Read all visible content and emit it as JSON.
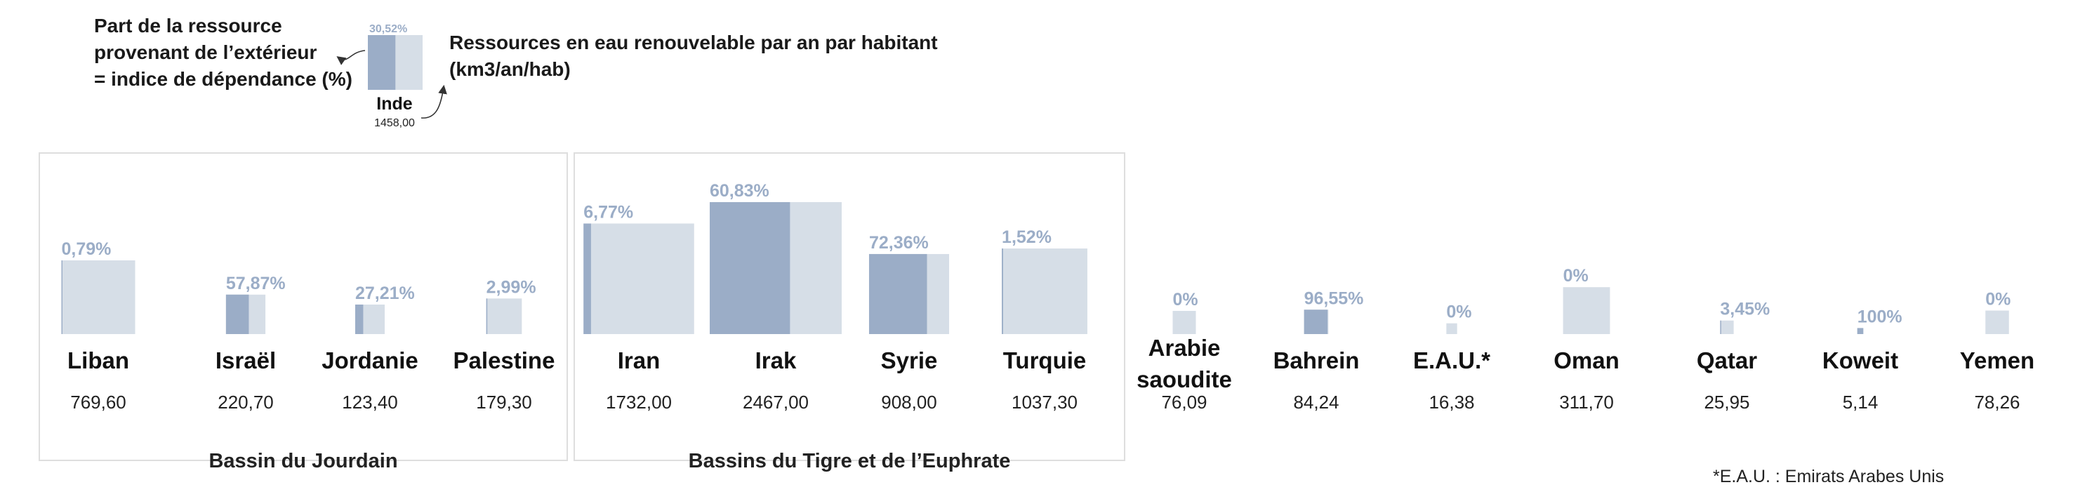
{
  "legend": {
    "left_text": [
      "Part de la ressource",
      "provenant de l’extérieur",
      "= indice de dépendance (%)"
    ],
    "right_text": [
      "Ressources en eau renouvelable par an par habitant",
      "(km3/an/hab)"
    ],
    "example": {
      "country": "Inde",
      "pct_label": "30,52%",
      "pct": 30.52,
      "value_label": "1458,00",
      "value": 1458.0
    }
  },
  "colors": {
    "dependent": "#9badc7",
    "total": "#d6dee7",
    "pct_text": "#9badc7",
    "frame": "#dedede"
  },
  "chart_data": {
    "type": "bar",
    "title": "",
    "groups": [
      {
        "label": "Bassin du Jourdain",
        "countries": [
          {
            "name": "Liban",
            "value": 769.6,
            "value_label": "769,60",
            "pct": 0.79,
            "pct_label": "0,79%"
          },
          {
            "name": "Israël",
            "value": 220.7,
            "value_label": "220,70",
            "pct": 57.87,
            "pct_label": "57,87%"
          },
          {
            "name": "Jordanie",
            "value": 123.4,
            "value_label": "123,40",
            "pct": 27.21,
            "pct_label": "27,21%"
          },
          {
            "name": "Palestine",
            "value": 179.3,
            "value_label": "179,30",
            "pct": 2.99,
            "pct_label": "2,99%"
          }
        ]
      },
      {
        "label": "Bassins du Tigre et de l’Euphrate",
        "countries": [
          {
            "name": "Iran",
            "value": 1732.0,
            "value_label": "1732,00",
            "pct": 6.77,
            "pct_label": "6,77%"
          },
          {
            "name": "Irak",
            "value": 2467.0,
            "value_label": "2467,00",
            "pct": 60.83,
            "pct_label": "60,83%"
          },
          {
            "name": "Syrie",
            "value": 908.0,
            "value_label": "908,00",
            "pct": 72.36,
            "pct_label": "72,36%"
          },
          {
            "name": "Turquie",
            "value": 1037.3,
            "value_label": "1037,30",
            "pct": 1.52,
            "pct_label": "1,52%"
          }
        ]
      },
      {
        "label": "",
        "countries": [
          {
            "name": "Arabie saoudite",
            "value": 76.09,
            "value_label": "76,09",
            "pct": 0,
            "pct_label": "0%"
          },
          {
            "name": "Bahrein",
            "value": 84.24,
            "value_label": "84,24",
            "pct": 96.55,
            "pct_label": "96,55%"
          },
          {
            "name": "E.A.U.*",
            "value": 16.38,
            "value_label": "16,38",
            "pct": 0,
            "pct_label": "0%"
          },
          {
            "name": "Oman",
            "value": 311.7,
            "value_label": "311,70",
            "pct": 0,
            "pct_label": "0%"
          },
          {
            "name": "Qatar",
            "value": 25.95,
            "value_label": "25,95",
            "pct": 3.45,
            "pct_label": "3,45%"
          },
          {
            "name": "Koweit",
            "value": 5.14,
            "value_label": "5,14",
            "pct": 100,
            "pct_label": "100%"
          },
          {
            "name": "Yemen",
            "value": 78.26,
            "value_label": "78,26",
            "pct": 0,
            "pct_label": "0%"
          }
        ]
      }
    ],
    "encoding": "square area ∝ value; dark fill width = pct"
  },
  "footnote": "*E.A.U. : Emirats Arabes Unis"
}
